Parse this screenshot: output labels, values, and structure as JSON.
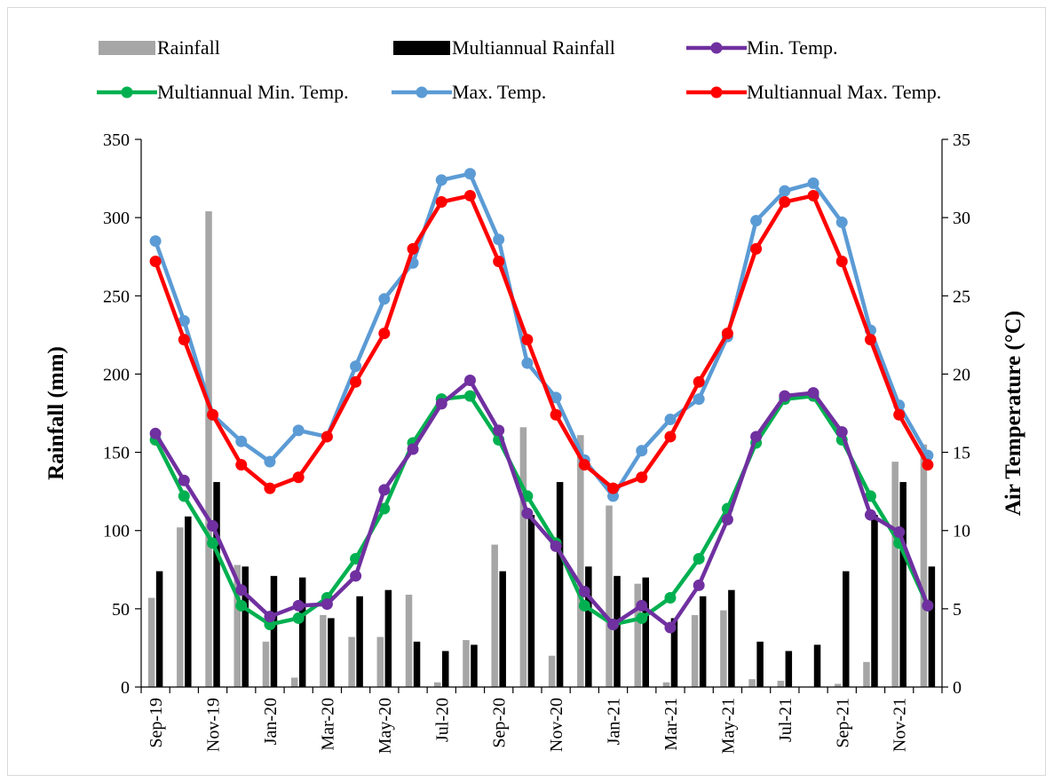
{
  "chart_data": {
    "type": "bar+line",
    "categories": [
      "Sep-19",
      "Oct-19",
      "Nov-19",
      "Dec-19",
      "Jan-20",
      "Feb-20",
      "Mar-20",
      "Apr-20",
      "May-20",
      "Jun-20",
      "Jul-20",
      "Aug-20",
      "Sep-20",
      "Oct-20",
      "Nov-20",
      "Dec-20",
      "Jan-21",
      "Feb-21",
      "Mar-21",
      "Apr-21",
      "May-21",
      "Jun-21",
      "Jul-21",
      "Aug-21",
      "Sep-21",
      "Oct-21",
      "Nov-21",
      "Dec-21"
    ],
    "x_tick_labels": [
      "Sep-19",
      "",
      "Nov-19",
      "",
      "Jan-20",
      "",
      "Mar-20",
      "",
      "May-20",
      "",
      "Jul-20",
      "",
      "Sep-20",
      "",
      "Nov-20",
      "",
      "Jan-21",
      "",
      "Mar-21",
      "",
      "May-21",
      "",
      "Jul-21",
      "",
      "Sep-21",
      "",
      "Nov-21",
      ""
    ],
    "y_left": {
      "label": "Rainfall (mm)",
      "ylim": [
        0,
        350
      ],
      "ticks": [
        "0",
        "50",
        "100",
        "150",
        "200",
        "250",
        "300",
        "350"
      ]
    },
    "y_right": {
      "label": "Air Temperature (°C)",
      "ylim": [
        0,
        35
      ],
      "ticks": [
        "0",
        "5",
        "10",
        "15",
        "20",
        "25",
        "30",
        "35"
      ]
    },
    "bar_series": [
      {
        "name": "Rainfall",
        "color": "#a6a6a6",
        "values": [
          57,
          102,
          304,
          78,
          29,
          6,
          46,
          32,
          32,
          59,
          3,
          30,
          91,
          166,
          20,
          161,
          116,
          66,
          3,
          46,
          49,
          5,
          4,
          0,
          2,
          16,
          144,
          155
        ]
      },
      {
        "name": "Multiannual Rainfall",
        "color": "#000000",
        "values": [
          74,
          109,
          131,
          77,
          71,
          70,
          44,
          58,
          62,
          29,
          23,
          27,
          74,
          110,
          131,
          77,
          71,
          70,
          44,
          58,
          62,
          29,
          23,
          27,
          74,
          110,
          131,
          77
        ]
      }
    ],
    "line_series": [
      {
        "name": "Min. Temp.",
        "color": "#7030a0",
        "values": [
          16.2,
          13.2,
          10.3,
          6.2,
          4.5,
          5.2,
          5.3,
          7.1,
          12.6,
          15.2,
          18.1,
          19.6,
          16.4,
          11.1,
          9.0,
          6.1,
          4.0,
          5.2,
          3.8,
          6.5,
          10.7,
          16.0,
          18.6,
          18.8,
          16.3,
          11.0,
          9.9,
          5.2
        ]
      },
      {
        "name": "Multiannual Min. Temp.",
        "color": "#00b050",
        "values": [
          15.8,
          12.2,
          9.2,
          5.2,
          4.0,
          4.4,
          5.7,
          8.2,
          11.4,
          15.6,
          18.4,
          18.6,
          15.8,
          12.2,
          9.2,
          5.2,
          4.0,
          4.4,
          5.7,
          8.2,
          11.4,
          15.6,
          18.4,
          18.6,
          15.8,
          12.2,
          9.2,
          5.2
        ]
      },
      {
        "name": "Max. Temp.",
        "color": "#5b9bd5",
        "values": [
          28.5,
          23.4,
          17.4,
          15.7,
          14.4,
          16.4,
          16.0,
          20.5,
          24.8,
          27.1,
          32.4,
          32.8,
          28.6,
          20.7,
          18.5,
          14.5,
          12.2,
          15.1,
          17.1,
          18.4,
          22.4,
          29.8,
          31.7,
          32.2,
          29.7,
          22.8,
          18.0,
          14.8
        ]
      },
      {
        "name": "Multiannual Max. Temp.",
        "color": "#ff0000",
        "values": [
          27.2,
          22.2,
          17.4,
          14.2,
          12.7,
          13.4,
          16.0,
          19.5,
          22.6,
          28.0,
          31.0,
          31.4,
          27.2,
          22.2,
          17.4,
          14.2,
          12.7,
          13.4,
          16.0,
          19.5,
          22.6,
          28.0,
          31.0,
          31.4,
          27.2,
          22.2,
          17.4,
          14.2
        ]
      }
    ],
    "legend": {
      "placement": "top",
      "rows": [
        [
          {
            "name": "Rainfall",
            "kind": "bar",
            "color": "#a6a6a6"
          },
          {
            "name": "Multiannual Rainfall",
            "kind": "bar",
            "color": "#000000"
          },
          {
            "name": "Min. Temp.",
            "kind": "line",
            "color": "#7030a0"
          }
        ],
        [
          {
            "name": "Multiannual Min. Temp.",
            "kind": "line",
            "color": "#00b050"
          },
          {
            "name": "Max. Temp.",
            "kind": "line",
            "color": "#5b9bd5"
          },
          {
            "name": "Multiannual Max. Temp.",
            "kind": "line",
            "color": "#ff0000"
          }
        ]
      ]
    },
    "grid": false
  }
}
